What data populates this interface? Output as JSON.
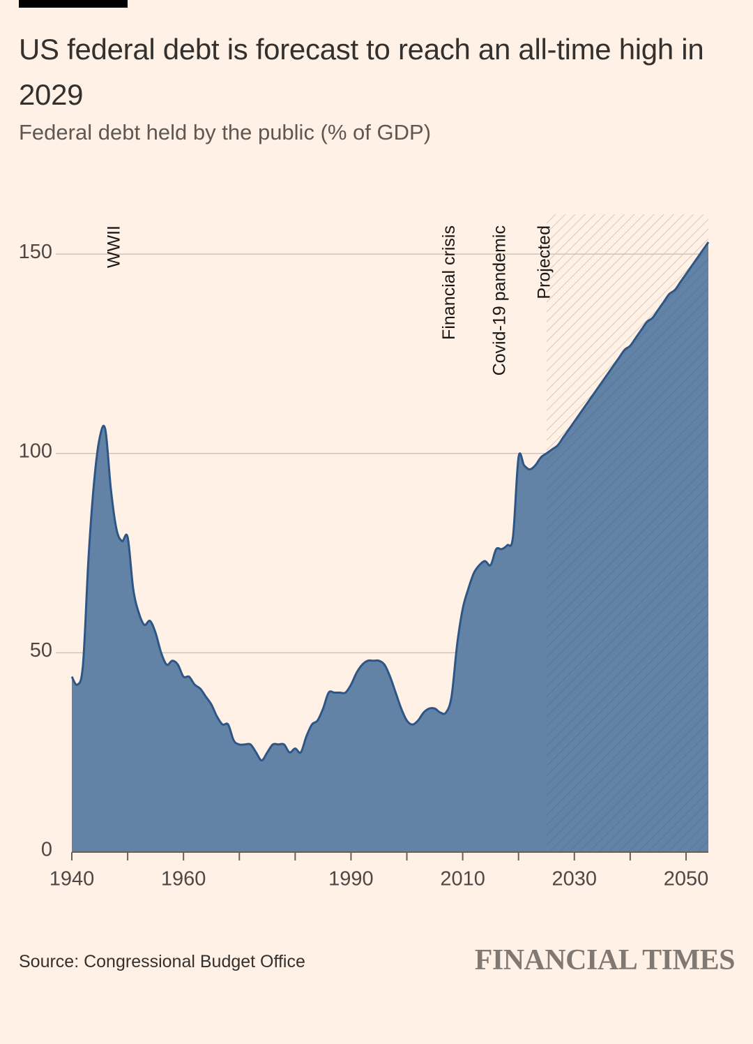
{
  "chart_data": {
    "type": "area",
    "title": "US federal debt is forecast to reach an all-time high in 2029",
    "subtitle": "Federal debt held by the public (% of GDP)",
    "source": "Source: Congressional Budget Office",
    "logo": "FINANCIAL TIMES",
    "x": [
      1940,
      1941,
      1942,
      1943,
      1944,
      1945,
      1946,
      1947,
      1948,
      1949,
      1950,
      1951,
      1952,
      1953,
      1954,
      1955,
      1956,
      1957,
      1958,
      1959,
      1960,
      1961,
      1962,
      1963,
      1964,
      1965,
      1966,
      1967,
      1968,
      1969,
      1970,
      1971,
      1972,
      1973,
      1974,
      1975,
      1976,
      1977,
      1978,
      1979,
      1980,
      1981,
      1982,
      1983,
      1984,
      1985,
      1986,
      1987,
      1988,
      1989,
      1990,
      1991,
      1992,
      1993,
      1994,
      1995,
      1996,
      1997,
      1998,
      1999,
      2000,
      2001,
      2002,
      2003,
      2004,
      2005,
      2006,
      2007,
      2008,
      2009,
      2010,
      2011,
      2012,
      2013,
      2014,
      2015,
      2016,
      2017,
      2018,
      2019,
      2020,
      2021,
      2022,
      2023,
      2024,
      2025,
      2026,
      2027,
      2028,
      2029,
      2030,
      2031,
      2032,
      2033,
      2034,
      2035,
      2036,
      2037,
      2038,
      2039,
      2040,
      2041,
      2042,
      2043,
      2044,
      2045,
      2046,
      2047,
      2048,
      2049,
      2050,
      2051,
      2052,
      2053,
      2054
    ],
    "values": [
      44,
      42,
      47,
      74,
      93,
      104,
      106,
      91,
      81,
      78,
      79,
      66,
      60,
      57,
      58,
      55,
      50,
      47,
      48,
      47,
      44,
      44,
      42,
      41,
      39,
      37,
      34,
      32,
      32,
      28,
      27,
      27,
      27,
      25,
      23,
      25,
      27,
      27,
      27,
      25,
      26,
      25,
      29,
      32,
      33,
      36,
      40,
      40,
      40,
      40,
      42,
      45,
      47,
      48,
      48,
      48,
      47,
      44,
      40,
      36,
      33,
      32,
      33,
      35,
      36,
      36,
      35,
      35,
      39,
      52,
      61,
      66,
      70,
      72,
      73,
      72,
      76,
      76,
      77,
      79,
      99,
      97,
      96,
      97,
      99,
      100,
      101,
      102,
      104,
      106,
      108,
      110,
      112,
      114,
      116,
      118,
      120,
      122,
      124,
      126,
      127,
      129,
      131,
      133,
      134,
      136,
      138,
      140,
      141,
      143,
      145,
      147,
      149,
      151,
      153
    ],
    "color": "#6283a6",
    "line_color": "#2d5686",
    "projection_start": 2025,
    "annotations": [
      {
        "text": "WWII",
        "x": 1948
      },
      {
        "text": "Financial crisis",
        "x": 2008
      },
      {
        "text": "Covid-19 pandemic",
        "x": 2017
      },
      {
        "text": "Projected",
        "x": 2025
      }
    ],
    "xlim": [
      1940,
      2054
    ],
    "ylim": [
      0,
      160
    ],
    "xticks": [
      1940,
      {
        "value": 1950,
        "label": null
      },
      1960,
      {
        "value": 1970,
        "label": null
      },
      {
        "value": 1980,
        "label": null
      },
      1990,
      {
        "value": 2000,
        "label": null
      },
      2010,
      {
        "value": 2020,
        "label": null
      },
      2030,
      {
        "value": 2040,
        "label": null
      },
      2050
    ],
    "yticks": [
      0,
      50,
      100,
      150
    ],
    "grid": true
  }
}
